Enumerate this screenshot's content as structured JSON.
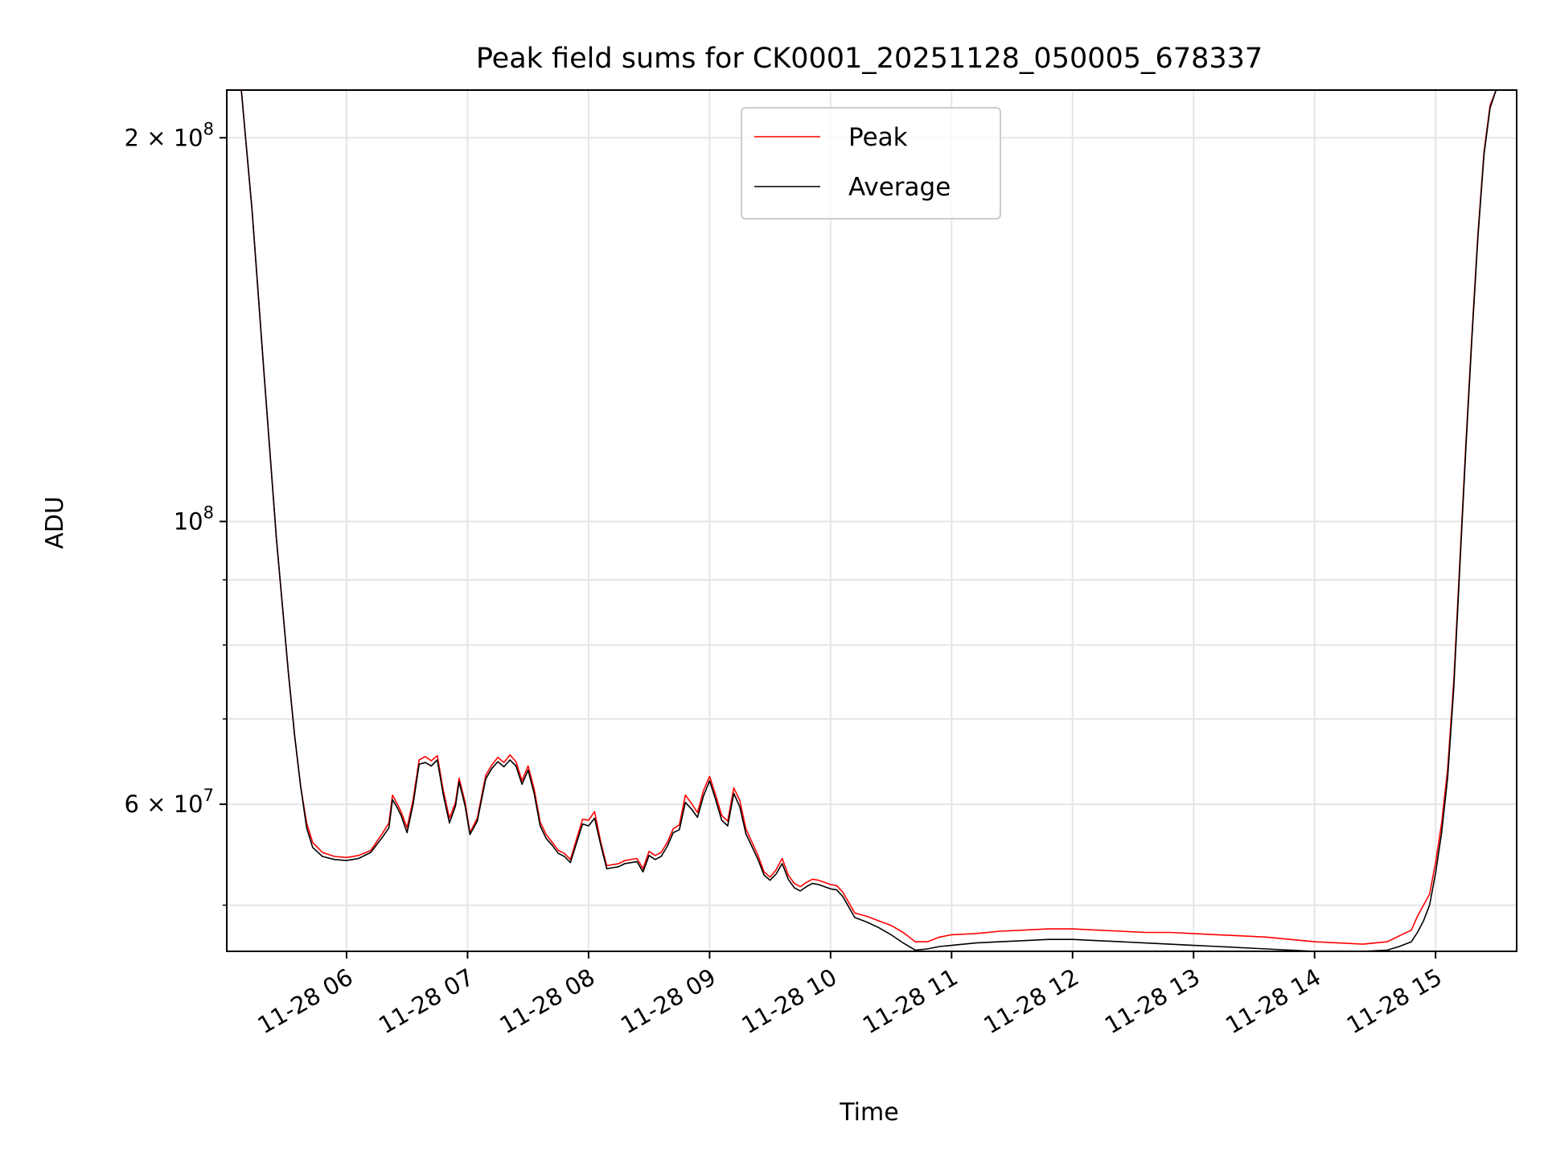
{
  "chart_data": {
    "type": "line",
    "title": "Peak field sums for CK0001_20251128_050005_678337",
    "xlabel": "Time",
    "ylabel": "ADU",
    "y_scale": "log",
    "grid": true,
    "legend_position": "top-center",
    "x_ticks": [
      {
        "label": "11-28 06",
        "hour": 6
      },
      {
        "label": "11-28 07",
        "hour": 7
      },
      {
        "label": "11-28 08",
        "hour": 8
      },
      {
        "label": "11-28 09",
        "hour": 9
      },
      {
        "label": "11-28 10",
        "hour": 10
      },
      {
        "label": "11-28 11",
        "hour": 11
      },
      {
        "label": "11-28 12",
        "hour": 12
      },
      {
        "label": "11-28 13",
        "hour": 13
      },
      {
        "label": "11-28 14",
        "hour": 14
      },
      {
        "label": "11-28 15",
        "hour": 15
      }
    ],
    "y_ticks": [
      {
        "base": "2 × 10",
        "exp": "8",
        "value": 200000000
      },
      {
        "base": "10",
        "exp": "8",
        "value": 100000000
      },
      {
        "base": "6 × 10",
        "exp": "7",
        "value": 60000000
      }
    ],
    "y_minor_ticks": [
      50000000,
      70000000,
      80000000,
      90000000
    ],
    "xlim_hours": [
      5.01,
      15.67
    ],
    "ylim": [
      46000000,
      218000000
    ],
    "series": [
      {
        "name": "Peak",
        "color": "#ff0000",
        "x_hours": [
          5.02,
          5.13,
          5.22,
          5.32,
          5.42,
          5.52,
          5.57,
          5.62,
          5.67,
          5.72,
          5.8,
          5.9,
          6.0,
          6.1,
          6.2,
          6.3,
          6.35,
          6.38,
          6.42,
          6.45,
          6.5,
          6.55,
          6.6,
          6.65,
          6.7,
          6.75,
          6.8,
          6.85,
          6.9,
          6.93,
          6.98,
          7.02,
          7.08,
          7.15,
          7.2,
          7.25,
          7.3,
          7.35,
          7.4,
          7.45,
          7.5,
          7.55,
          7.6,
          7.65,
          7.7,
          7.75,
          7.8,
          7.85,
          7.95,
          8.0,
          8.05,
          8.1,
          8.15,
          8.2,
          8.25,
          8.3,
          8.4,
          8.45,
          8.5,
          8.55,
          8.6,
          8.65,
          8.7,
          8.75,
          8.8,
          8.85,
          8.9,
          8.95,
          9.0,
          9.05,
          9.1,
          9.15,
          9.2,
          9.25,
          9.3,
          9.4,
          9.45,
          9.5,
          9.55,
          9.6,
          9.65,
          9.7,
          9.75,
          9.8,
          9.85,
          9.9,
          9.95,
          10.0,
          10.05,
          10.1,
          10.2,
          10.3,
          10.4,
          10.5,
          10.6,
          10.7,
          10.8,
          10.9,
          11.0,
          11.2,
          11.4,
          11.6,
          11.8,
          12.0,
          12.2,
          12.4,
          12.6,
          12.8,
          13.0,
          13.2,
          13.4,
          13.6,
          13.8,
          14.0,
          14.2,
          14.4,
          14.6,
          14.7,
          14.8,
          14.85,
          14.9,
          14.95,
          15.0,
          15.05,
          15.1,
          15.15,
          15.2,
          15.25,
          15.3,
          15.35,
          15.4,
          15.45,
          15.5,
          15.55,
          15.6,
          15.66
        ],
        "values": [
          218000000,
          218000000,
          175000000,
          130000000,
          97000000,
          76000000,
          68000000,
          62000000,
          58000000,
          56000000,
          55000000,
          54600000,
          54500000,
          54700000,
          55200000,
          57000000,
          58000000,
          61000000,
          60000000,
          59200000,
          57500000,
          60500000,
          65000000,
          65400000,
          64900000,
          65500000,
          61500000,
          58500000,
          60200000,
          62900000,
          60200000,
          57000000,
          58500000,
          63200000,
          64400000,
          65300000,
          64700000,
          65600000,
          64800000,
          62600000,
          64300000,
          61700000,
          58100000,
          56800000,
          56000000,
          55200000,
          54900000,
          54300000,
          58400000,
          58300000,
          59200000,
          56100000,
          53700000,
          53800000,
          53900000,
          54200000,
          54400000,
          53400000,
          55100000,
          54700000,
          55000000,
          56000000,
          57400000,
          57800000,
          61000000,
          60100000,
          59100000,
          61500000,
          63100000,
          61000000,
          58800000,
          58200000,
          61800000,
          60400000,
          57400000,
          54700000,
          53100000,
          52600000,
          53300000,
          54400000,
          52800000,
          52000000,
          51700000,
          52100000,
          52400000,
          52300000,
          52100000,
          51900000,
          51800000,
          51200000,
          49300000,
          49000000,
          48600000,
          48200000,
          47600000,
          46800000,
          46800000,
          47200000,
          47400000,
          47500000,
          47700000,
          47800000,
          47900000,
          47900000,
          47800000,
          47700000,
          47600000,
          47600000,
          47500000,
          47400000,
          47300000,
          47200000,
          47000000,
          46800000,
          46700000,
          46600000,
          46800000,
          47300000,
          47800000,
          49000000,
          50000000,
          51000000,
          54000000,
          58000000,
          64000000,
          75000000,
          93000000,
          115000000,
          140000000,
          168000000,
          195000000,
          212000000,
          218000000,
          218000000,
          218000000,
          218000000
        ]
      },
      {
        "name": "Average",
        "color": "#000000",
        "x_hours": [
          5.02,
          5.13,
          5.22,
          5.32,
          5.42,
          5.52,
          5.57,
          5.62,
          5.67,
          5.72,
          5.8,
          5.9,
          6.0,
          6.1,
          6.2,
          6.3,
          6.35,
          6.38,
          6.42,
          6.45,
          6.5,
          6.55,
          6.6,
          6.65,
          6.7,
          6.75,
          6.8,
          6.85,
          6.9,
          6.93,
          6.98,
          7.02,
          7.08,
          7.15,
          7.2,
          7.25,
          7.3,
          7.35,
          7.4,
          7.45,
          7.5,
          7.55,
          7.6,
          7.65,
          7.7,
          7.75,
          7.8,
          7.85,
          7.95,
          8.0,
          8.05,
          8.1,
          8.15,
          8.2,
          8.25,
          8.3,
          8.4,
          8.45,
          8.5,
          8.55,
          8.6,
          8.65,
          8.7,
          8.75,
          8.8,
          8.85,
          8.9,
          8.95,
          9.0,
          9.05,
          9.1,
          9.15,
          9.2,
          9.25,
          9.3,
          9.4,
          9.45,
          9.5,
          9.55,
          9.6,
          9.65,
          9.7,
          9.75,
          9.8,
          9.85,
          9.9,
          9.95,
          10.0,
          10.05,
          10.1,
          10.2,
          10.3,
          10.4,
          10.5,
          10.6,
          10.7,
          10.8,
          10.9,
          11.0,
          11.2,
          11.4,
          11.6,
          11.8,
          12.0,
          12.2,
          12.4,
          12.6,
          12.8,
          13.0,
          13.2,
          13.4,
          13.6,
          13.8,
          14.0,
          14.2,
          14.4,
          14.6,
          14.7,
          14.8,
          14.85,
          14.9,
          14.95,
          15.0,
          15.05,
          15.1,
          15.15,
          15.2,
          15.25,
          15.3,
          15.35,
          15.4,
          15.45,
          15.5,
          15.55,
          15.6,
          15.66
        ],
        "values": [
          218000000,
          218000000,
          175000000,
          130000000,
          97000000,
          76000000,
          68000000,
          62000000,
          57500000,
          55500000,
          54600000,
          54300000,
          54200000,
          54400000,
          55000000,
          56600000,
          57500000,
          60500000,
          59600000,
          58800000,
          57000000,
          60000000,
          64500000,
          64700000,
          64300000,
          65000000,
          61000000,
          58000000,
          59800000,
          62500000,
          59800000,
          56800000,
          58200000,
          62800000,
          64000000,
          64800000,
          64200000,
          65000000,
          64300000,
          62200000,
          63800000,
          61200000,
          57700000,
          56400000,
          55700000,
          54900000,
          54600000,
          54000000,
          57900000,
          57700000,
          58500000,
          55800000,
          53400000,
          53500000,
          53600000,
          53900000,
          54100000,
          53100000,
          54700000,
          54300000,
          54600000,
          55600000,
          57000000,
          57300000,
          60200000,
          59500000,
          58600000,
          60900000,
          62600000,
          60500000,
          58300000,
          57700000,
          61200000,
          59700000,
          56900000,
          54300000,
          52800000,
          52300000,
          52900000,
          53900000,
          52400000,
          51600000,
          51300000,
          51700000,
          52000000,
          51900000,
          51700000,
          51500000,
          51400000,
          50800000,
          48900000,
          48500000,
          48000000,
          47400000,
          46700000,
          46100000,
          46200000,
          46400000,
          46500000,
          46700000,
          46800000,
          46900000,
          47000000,
          47000000,
          46900000,
          46800000,
          46700000,
          46600000,
          46500000,
          46400000,
          46300000,
          46200000,
          46100000,
          46000000,
          46000000,
          46000000,
          46100000,
          46400000,
          46800000,
          47600000,
          48600000,
          50000000,
          53000000,
          57000000,
          63000000,
          74000000,
          92000000,
          114000000,
          139000000,
          167000000,
          194000000,
          211000000,
          218000000,
          218000000,
          218000000,
          218000000
        ]
      }
    ],
    "legend": [
      {
        "label": "Peak",
        "color": "#ff0000"
      },
      {
        "label": "Average",
        "color": "#000000"
      }
    ]
  }
}
